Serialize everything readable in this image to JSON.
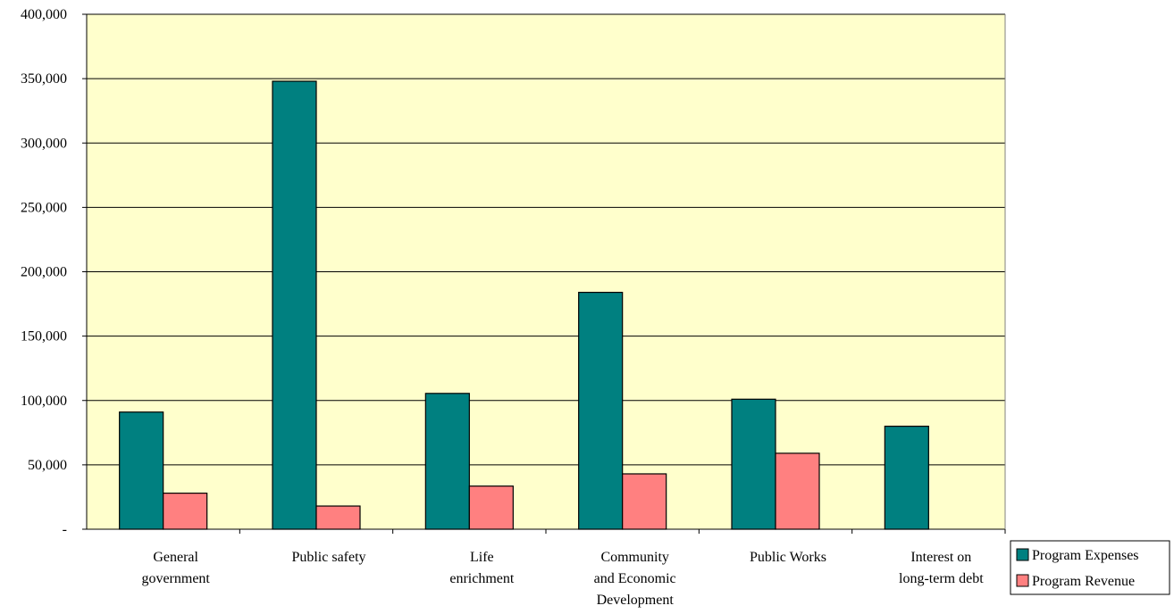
{
  "chart_data": {
    "type": "bar",
    "categories": [
      [
        "General",
        "government"
      ],
      [
        "Public safety"
      ],
      [
        "Life",
        "enrichment"
      ],
      [
        "Community",
        "and Economic",
        "Development"
      ],
      [
        "Public Works"
      ],
      [
        "Interest on",
        "long-term debt"
      ]
    ],
    "series": [
      {
        "name": "Program Expenses",
        "color": "#008080",
        "values": [
          91000,
          348000,
          105500,
          184000,
          101000,
          80000
        ]
      },
      {
        "name": "Program Revenue",
        "color": "#ff8080",
        "values": [
          28000,
          18000,
          33500,
          43000,
          59000,
          0
        ]
      }
    ],
    "yticks": [
      "-",
      "50,000",
      "100,000",
      "150,000",
      "200,000",
      "250,000",
      "300,000",
      "350,000",
      "400,000"
    ],
    "ylim": [
      0,
      400000
    ],
    "grid": true,
    "plot_background": "#ffffcc",
    "legend_position": "right"
  }
}
